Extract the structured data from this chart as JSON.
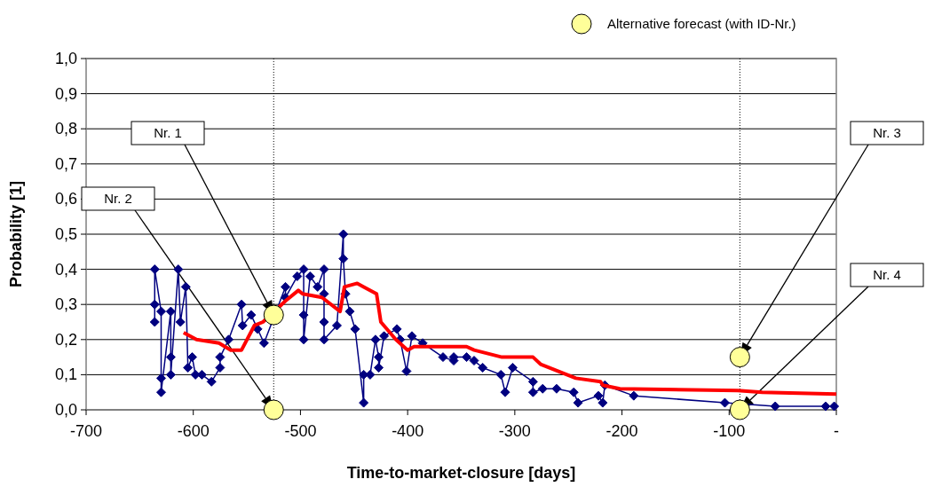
{
  "chart_data": {
    "type": "line",
    "xlabel": "Time-to-market-closure [days]",
    "ylabel": "Probability [1]",
    "xlim": [
      -700,
      0
    ],
    "xticks": [
      -700,
      -600,
      -500,
      -400,
      -300,
      -200,
      -100,
      {
        "value": 0,
        "label": "-"
      }
    ],
    "ylim": [
      0,
      1
    ],
    "yticks": [
      {
        "value": 0,
        "label": "0,0"
      },
      {
        "value": 0.1,
        "label": "0,1"
      },
      {
        "value": 0.2,
        "label": "0,2"
      },
      {
        "value": 0.3,
        "label": "0,3"
      },
      {
        "value": 0.4,
        "label": "0,4"
      },
      {
        "value": 0.5,
        "label": "0,5"
      },
      {
        "value": 0.6,
        "label": "0,6"
      },
      {
        "value": 0.7,
        "label": "0,7"
      },
      {
        "value": 0.8,
        "label": "0,8"
      },
      {
        "value": 0.9,
        "label": "0,9"
      },
      {
        "value": 1,
        "label": "1,0"
      }
    ],
    "grid": "y",
    "legend": "top right",
    "series": [
      {
        "color": "#000080",
        "marker": "diamond",
        "x": [
          -636,
          -636,
          -636,
          -630,
          -630,
          -630,
          -621,
          -621,
          -621,
          -614,
          -612,
          -607,
          -605,
          -601,
          -598,
          -592,
          -583,
          -575,
          -575,
          -567,
          -555,
          -554,
          -546,
          -540,
          -534,
          -514,
          -514,
          -503,
          -497,
          -497,
          -497,
          -491,
          -484,
          -478,
          -478,
          -478,
          -478,
          -466,
          -460,
          -460,
          -458,
          -454,
          -449,
          -441,
          -441,
          -435,
          -430,
          -427,
          -427,
          -422,
          -410,
          -407,
          -401,
          -396,
          -386,
          -367,
          -357,
          -357,
          -345,
          -338,
          -330,
          -313,
          -309,
          -302,
          -283,
          -283,
          -274,
          -261,
          -245,
          -241,
          -222,
          -218,
          -216,
          -189,
          -104,
          -57,
          -10,
          -2
        ],
        "values": [
          0.25,
          0.3,
          0.4,
          0.28,
          0.09,
          0.05,
          0.28,
          0.15,
          0.1,
          0.4,
          0.25,
          0.35,
          0.12,
          0.15,
          0.1,
          0.1,
          0.08,
          0.12,
          0.15,
          0.2,
          0.3,
          0.24,
          0.27,
          0.23,
          0.19,
          0.35,
          0.32,
          0.38,
          0.4,
          0.27,
          0.2,
          0.38,
          0.35,
          0.4,
          0.33,
          0.25,
          0.2,
          0.24,
          0.5,
          0.43,
          0.33,
          0.28,
          0.23,
          0.02,
          0.1,
          0.1,
          0.2,
          0.15,
          0.12,
          0.21,
          0.23,
          0.2,
          0.11,
          0.21,
          0.19,
          0.15,
          0.14,
          0.15,
          0.15,
          0.14,
          0.12,
          0.1,
          0.05,
          0.12,
          0.08,
          0.05,
          0.06,
          0.06,
          0.05,
          0.02,
          0.04,
          0.02,
          0.07,
          0.04,
          0.02,
          0.01,
          0.01,
          0.01
        ]
      },
      {
        "color": "#ff0000",
        "marker": "none",
        "x": [
          -609,
          -597,
          -576,
          -565,
          -555,
          -543,
          -535,
          -525,
          -514,
          -502,
          -498,
          -480,
          -463,
          -459,
          -447,
          -441,
          -429,
          -425,
          -411,
          -400,
          -394,
          -345,
          -338,
          -312,
          -283,
          -276,
          -243,
          -220,
          -218,
          -202,
          -92,
          -69,
          0
        ],
        "values": [
          0.22,
          0.2,
          0.19,
          0.17,
          0.17,
          0.24,
          0.25,
          null,
          0.31,
          0.34,
          0.33,
          0.32,
          0.28,
          0.35,
          0.36,
          0.35,
          0.33,
          0.25,
          0.2,
          0.17,
          0.18,
          0.18,
          0.17,
          0.15,
          0.15,
          0.13,
          0.09,
          0.08,
          0.07,
          0.06,
          0.055,
          0.05,
          0.045
        ]
      },
      {
        "type": "scatter",
        "name": "Alternative forecast (with ID-Nr.)",
        "color": "#ffff99",
        "marker": "circle",
        "x": [
          -525,
          -525,
          -90,
          -90
        ],
        "values": [
          0.27,
          0,
          0.15,
          0
        ]
      }
    ],
    "ref_lines": [
      {
        "axis": "x",
        "value": -525,
        "line_style": "dotted",
        "color": "#000000"
      },
      {
        "axis": "x",
        "value": -90,
        "line_style": "dotted",
        "color": "#000000"
      }
    ],
    "annotations": [
      "Nr. 1",
      "Nr. 2",
      "Nr. 3",
      "Nr. 4"
    ]
  }
}
